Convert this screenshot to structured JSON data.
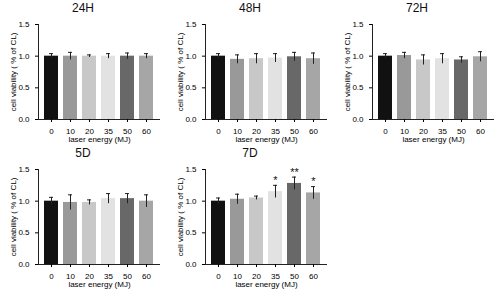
{
  "chart_data": [
    {
      "type": "bar",
      "title": "24H",
      "x_label": "laser energy (MJ)",
      "y_label": "cell viability ( % of CL)",
      "categories": [
        "0",
        "10",
        "20",
        "35",
        "50",
        "60"
      ],
      "values": [
        1.0,
        1.0,
        1.0,
        1.0,
        1.0,
        1.0
      ],
      "errors": [
        0.04,
        0.06,
        0.02,
        0.04,
        0.05,
        0.04
      ],
      "significance": [
        null,
        null,
        null,
        null,
        null,
        null
      ],
      "colors": [
        "#111111",
        "#999999",
        "#c8c8c8",
        "#e2e2e2",
        "#686868",
        "#a6a6a6"
      ],
      "ylim": [
        0,
        1.5
      ],
      "yticks": [
        {
          "value": 0,
          "label": "0.0"
        },
        0.5,
        {
          "value": 1,
          "label": "1.0"
        },
        1.5
      ]
    },
    {
      "type": "bar",
      "title": "48H",
      "x_label": "laser energy (MJ)",
      "y_label": "cell viability ( % of CL)",
      "categories": [
        "0",
        "10",
        "20",
        "35",
        "50",
        "60"
      ],
      "values": [
        1.0,
        0.95,
        0.96,
        0.97,
        0.99,
        0.96
      ],
      "errors": [
        0.04,
        0.07,
        0.08,
        0.07,
        0.07,
        0.09
      ],
      "significance": [
        null,
        null,
        null,
        null,
        null,
        null
      ],
      "colors": [
        "#111111",
        "#999999",
        "#c8c8c8",
        "#e2e2e2",
        "#686868",
        "#a6a6a6"
      ],
      "ylim": [
        0,
        1.5
      ],
      "yticks": [
        {
          "value": 0,
          "label": "0.0"
        },
        0.5,
        {
          "value": 1,
          "label": "1.0"
        },
        1.5
      ]
    },
    {
      "type": "bar",
      "title": "72H",
      "x_label": "laser energy (MJ)",
      "y_label": "cell viability ( % of CL)",
      "categories": [
        "0",
        "10",
        "20",
        "35",
        "50",
        "60"
      ],
      "values": [
        1.0,
        1.01,
        0.94,
        0.96,
        0.94,
        0.99
      ],
      "errors": [
        0.04,
        0.05,
        0.08,
        0.08,
        0.05,
        0.08
      ],
      "significance": [
        null,
        null,
        null,
        null,
        null,
        null
      ],
      "colors": [
        "#111111",
        "#999999",
        "#c8c8c8",
        "#e2e2e2",
        "#686868",
        "#a6a6a6"
      ],
      "ylim": [
        0,
        1.5
      ],
      "yticks": [
        {
          "value": 0,
          "label": "0.0"
        },
        0.5,
        {
          "value": 1,
          "label": "1.0"
        },
        1.5
      ]
    },
    {
      "type": "bar",
      "title": "5D",
      "x_label": "laser energy (MJ)",
      "y_label": "cell viability ( % of CL)",
      "categories": [
        "0",
        "10",
        "20",
        "35",
        "50",
        "60"
      ],
      "values": [
        1.0,
        0.98,
        0.98,
        1.04,
        1.04,
        1.0
      ],
      "errors": [
        0.06,
        0.12,
        0.04,
        0.08,
        0.08,
        0.1
      ],
      "significance": [
        null,
        null,
        null,
        null,
        null,
        null
      ],
      "colors": [
        "#111111",
        "#999999",
        "#c8c8c8",
        "#e2e2e2",
        "#686868",
        "#a6a6a6"
      ],
      "ylim": [
        0,
        1.5
      ],
      "yticks": [
        {
          "value": 0,
          "label": "0.0"
        },
        0.5,
        {
          "value": 1,
          "label": "1.0"
        },
        1.5
      ]
    },
    {
      "type": "bar",
      "title": "7D",
      "x_label": "laser energy (MJ)",
      "y_label": "cell viability ( % of CL)",
      "categories": [
        "0",
        "10",
        "20",
        "35",
        "50",
        "60"
      ],
      "values": [
        1.0,
        1.03,
        1.05,
        1.15,
        1.28,
        1.13
      ],
      "errors": [
        0.05,
        0.08,
        0.03,
        0.1,
        0.1,
        0.1
      ],
      "significance": [
        null,
        null,
        null,
        "*",
        "**",
        "*"
      ],
      "colors": [
        "#111111",
        "#999999",
        "#c8c8c8",
        "#e2e2e2",
        "#686868",
        "#a6a6a6"
      ],
      "ylim": [
        0,
        1.5
      ],
      "yticks": [
        {
          "value": 0,
          "label": "0.0"
        },
        0.5,
        {
          "value": 1,
          "label": "1.0"
        },
        1.5
      ]
    }
  ]
}
